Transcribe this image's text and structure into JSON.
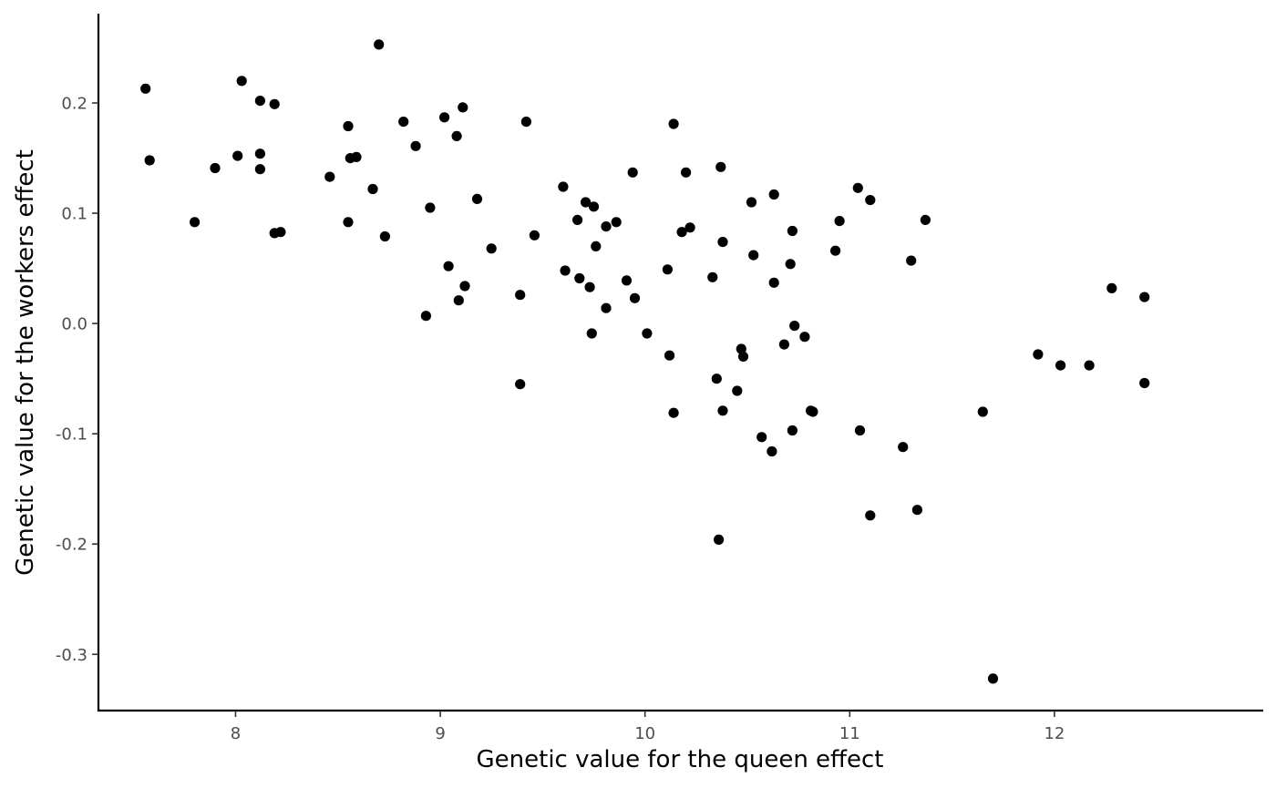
{
  "chart_data": {
    "type": "scatter",
    "xlabel": "Genetic value for the queen effect",
    "ylabel": "Genetic value for the workers effect",
    "xlim": [
      7.33,
      13.02
    ],
    "ylim": [
      -0.351,
      0.281
    ],
    "x_ticks": [
      8,
      9,
      10,
      11,
      12
    ],
    "x_tick_labels": [
      "8",
      "9",
      "10",
      "11",
      "12"
    ],
    "y_ticks": [
      0.2,
      0.1,
      0.0,
      -0.1,
      -0.2,
      -0.3
    ],
    "y_tick_labels": [
      "0.2",
      "0.1",
      "0.0",
      "-0.1",
      "-0.2",
      "-0.3"
    ],
    "grid": false,
    "legend": "none",
    "point_color": "#000000",
    "points": [
      {
        "x": 7.56,
        "y": 0.213
      },
      {
        "x": 7.58,
        "y": 0.148
      },
      {
        "x": 7.8,
        "y": 0.092
      },
      {
        "x": 7.9,
        "y": 0.141
      },
      {
        "x": 8.01,
        "y": 0.152
      },
      {
        "x": 8.03,
        "y": 0.22
      },
      {
        "x": 8.12,
        "y": 0.202
      },
      {
        "x": 8.12,
        "y": 0.154
      },
      {
        "x": 8.12,
        "y": 0.14
      },
      {
        "x": 8.19,
        "y": 0.199
      },
      {
        "x": 8.19,
        "y": 0.082
      },
      {
        "x": 8.22,
        "y": 0.083
      },
      {
        "x": 8.46,
        "y": 0.133
      },
      {
        "x": 8.55,
        "y": 0.179
      },
      {
        "x": 8.56,
        "y": 0.15
      },
      {
        "x": 8.59,
        "y": 0.151
      },
      {
        "x": 8.55,
        "y": 0.092
      },
      {
        "x": 8.67,
        "y": 0.122
      },
      {
        "x": 8.7,
        "y": 0.253
      },
      {
        "x": 8.73,
        "y": 0.079
      },
      {
        "x": 8.82,
        "y": 0.183
      },
      {
        "x": 8.88,
        "y": 0.161
      },
      {
        "x": 8.93,
        "y": 0.007
      },
      {
        "x": 8.95,
        "y": 0.105
      },
      {
        "x": 9.02,
        "y": 0.187
      },
      {
        "x": 9.04,
        "y": 0.052
      },
      {
        "x": 9.08,
        "y": 0.17
      },
      {
        "x": 9.09,
        "y": 0.021
      },
      {
        "x": 9.11,
        "y": 0.196
      },
      {
        "x": 9.12,
        "y": 0.034
      },
      {
        "x": 9.18,
        "y": 0.113
      },
      {
        "x": 9.25,
        "y": 0.068
      },
      {
        "x": 9.39,
        "y": 0.026
      },
      {
        "x": 9.39,
        "y": -0.055
      },
      {
        "x": 9.42,
        "y": 0.183
      },
      {
        "x": 9.46,
        "y": 0.08
      },
      {
        "x": 9.6,
        "y": 0.124
      },
      {
        "x": 9.61,
        "y": 0.048
      },
      {
        "x": 9.67,
        "y": 0.094
      },
      {
        "x": 9.68,
        "y": 0.041
      },
      {
        "x": 9.71,
        "y": 0.11
      },
      {
        "x": 9.73,
        "y": 0.033
      },
      {
        "x": 9.74,
        "y": -0.009
      },
      {
        "x": 9.75,
        "y": 0.106
      },
      {
        "x": 9.76,
        "y": 0.07
      },
      {
        "x": 9.81,
        "y": 0.088
      },
      {
        "x": 9.81,
        "y": 0.014
      },
      {
        "x": 9.86,
        "y": 0.092
      },
      {
        "x": 9.91,
        "y": 0.039
      },
      {
        "x": 9.94,
        "y": 0.137
      },
      {
        "x": 9.95,
        "y": 0.023
      },
      {
        "x": 10.01,
        "y": -0.009
      },
      {
        "x": 10.11,
        "y": 0.049
      },
      {
        "x": 10.12,
        "y": -0.029
      },
      {
        "x": 10.14,
        "y": 0.181
      },
      {
        "x": 10.14,
        "y": -0.081
      },
      {
        "x": 10.18,
        "y": 0.083
      },
      {
        "x": 10.2,
        "y": 0.137
      },
      {
        "x": 10.22,
        "y": 0.087
      },
      {
        "x": 10.33,
        "y": 0.042
      },
      {
        "x": 10.35,
        "y": -0.05
      },
      {
        "x": 10.37,
        "y": 0.142
      },
      {
        "x": 10.38,
        "y": 0.074
      },
      {
        "x": 10.38,
        "y": -0.079
      },
      {
        "x": 10.36,
        "y": -0.196
      },
      {
        "x": 10.45,
        "y": -0.061
      },
      {
        "x": 10.47,
        "y": -0.023
      },
      {
        "x": 10.48,
        "y": -0.03
      },
      {
        "x": 10.52,
        "y": 0.11
      },
      {
        "x": 10.53,
        "y": 0.062
      },
      {
        "x": 10.57,
        "y": -0.103
      },
      {
        "x": 10.62,
        "y": -0.116
      },
      {
        "x": 10.63,
        "y": 0.117
      },
      {
        "x": 10.63,
        "y": 0.037
      },
      {
        "x": 10.68,
        "y": -0.019
      },
      {
        "x": 10.71,
        "y": 0.054
      },
      {
        "x": 10.72,
        "y": 0.084
      },
      {
        "x": 10.72,
        "y": -0.097
      },
      {
        "x": 10.73,
        "y": -0.002
      },
      {
        "x": 10.78,
        "y": -0.012
      },
      {
        "x": 10.81,
        "y": -0.079
      },
      {
        "x": 10.82,
        "y": -0.08
      },
      {
        "x": 10.93,
        "y": 0.066
      },
      {
        "x": 10.95,
        "y": 0.093
      },
      {
        "x": 11.04,
        "y": 0.123
      },
      {
        "x": 11.05,
        "y": -0.097
      },
      {
        "x": 11.1,
        "y": 0.112
      },
      {
        "x": 11.1,
        "y": -0.174
      },
      {
        "x": 11.26,
        "y": -0.112
      },
      {
        "x": 11.3,
        "y": 0.057
      },
      {
        "x": 11.33,
        "y": -0.169
      },
      {
        "x": 11.37,
        "y": 0.094
      },
      {
        "x": 11.65,
        "y": -0.08
      },
      {
        "x": 11.7,
        "y": -0.322
      },
      {
        "x": 11.92,
        "y": -0.028
      },
      {
        "x": 12.03,
        "y": -0.038
      },
      {
        "x": 12.17,
        "y": -0.038
      },
      {
        "x": 12.28,
        "y": 0.032
      },
      {
        "x": 12.44,
        "y": 0.024
      },
      {
        "x": 12.44,
        "y": -0.054
      }
    ]
  }
}
